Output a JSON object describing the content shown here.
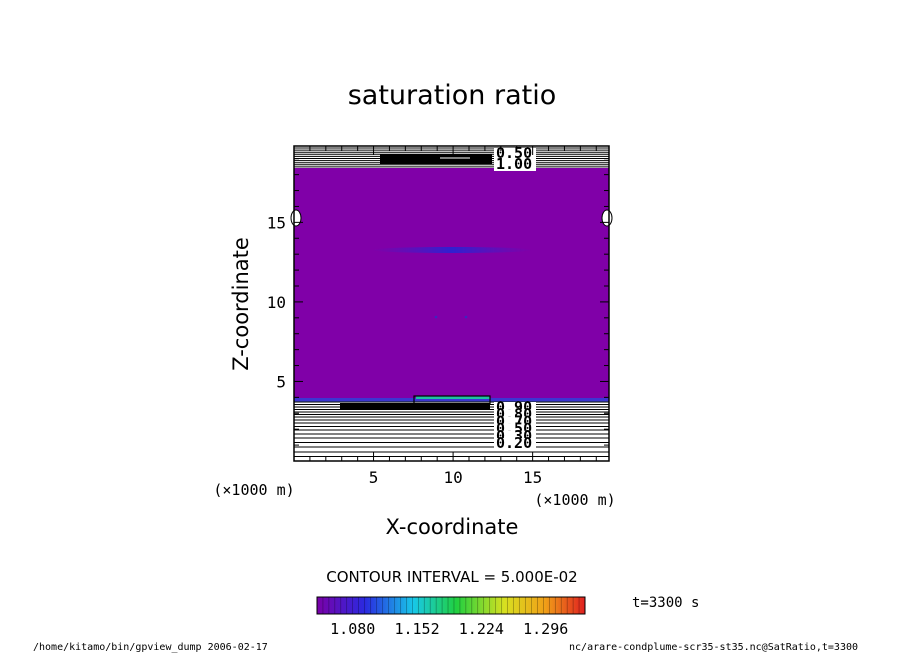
{
  "chart_data": {
    "type": "heatmap",
    "title": "saturation ratio",
    "xlabel": "X-coordinate",
    "ylabel": "Z-coordinate",
    "x_unit": "(×1000 m)",
    "y_unit": "(×1000 m)",
    "x_ticks": [
      5,
      10,
      15
    ],
    "y_ticks": [
      5,
      10,
      15
    ],
    "xlim": [
      0,
      19.8
    ],
    "ylim": [
      0,
      19.8
    ],
    "contour_interval": "CONTOUR INTERVAL = 5.000E-02",
    "time_label": "t=3300 s",
    "colorbar_ticks": [
      "1.080",
      "1.152",
      "1.224",
      "1.296"
    ],
    "colorbar_range": [
      1.04,
      1.34
    ],
    "fill_color": "#8000a8",
    "contour_labels": [
      {
        "value": "0.50",
        "region": "top"
      },
      {
        "value": "1.00",
        "region": "top"
      },
      {
        "value": "0.90",
        "region": "bottom"
      },
      {
        "value": "0.80",
        "region": "bottom"
      },
      {
        "value": "0.70",
        "region": "bottom"
      },
      {
        "value": "0.50",
        "region": "bottom"
      },
      {
        "value": "0.30",
        "region": "bottom"
      },
      {
        "value": "0.20",
        "region": "bottom"
      }
    ],
    "grid": false
  },
  "footer": {
    "left": "/home/kitamo/bin/gpview_dump  2006-02-17",
    "right": "nc/arare-condplume-scr35-st35.nc@SatRatio,t=3300"
  }
}
